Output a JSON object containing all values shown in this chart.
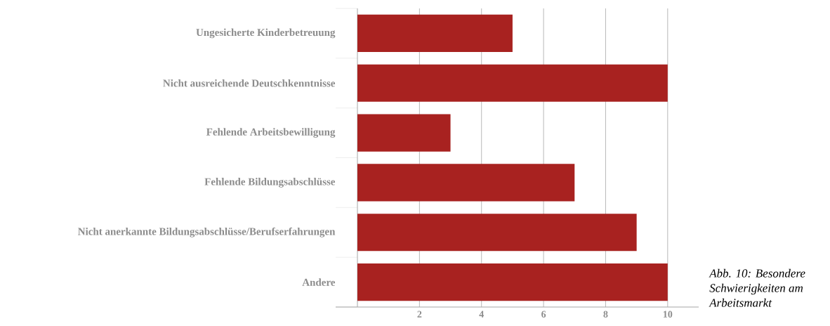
{
  "chart_data": {
    "type": "bar",
    "orientation": "horizontal",
    "categories": [
      "Ungesicherte Kinderbetreuung",
      "Nicht ausreichende Deutschkenntnisse",
      "Fehlende Arbeitsbewilligung",
      "Fehlende Bildungsabschlüsse",
      "Nicht anerkannte Bildungsabschlüsse/Berufserfahrungen",
      "Andere"
    ],
    "values": [
      5,
      10,
      3,
      7,
      9,
      10
    ],
    "color": "#a82220",
    "xlim": [
      0,
      11
    ],
    "xticks": [
      2,
      4,
      6,
      8,
      10
    ],
    "grid": "x",
    "annotations": [
      "Abb. 10: Besondere Schwierigkeiten am Arbeitsmarkt"
    ]
  }
}
